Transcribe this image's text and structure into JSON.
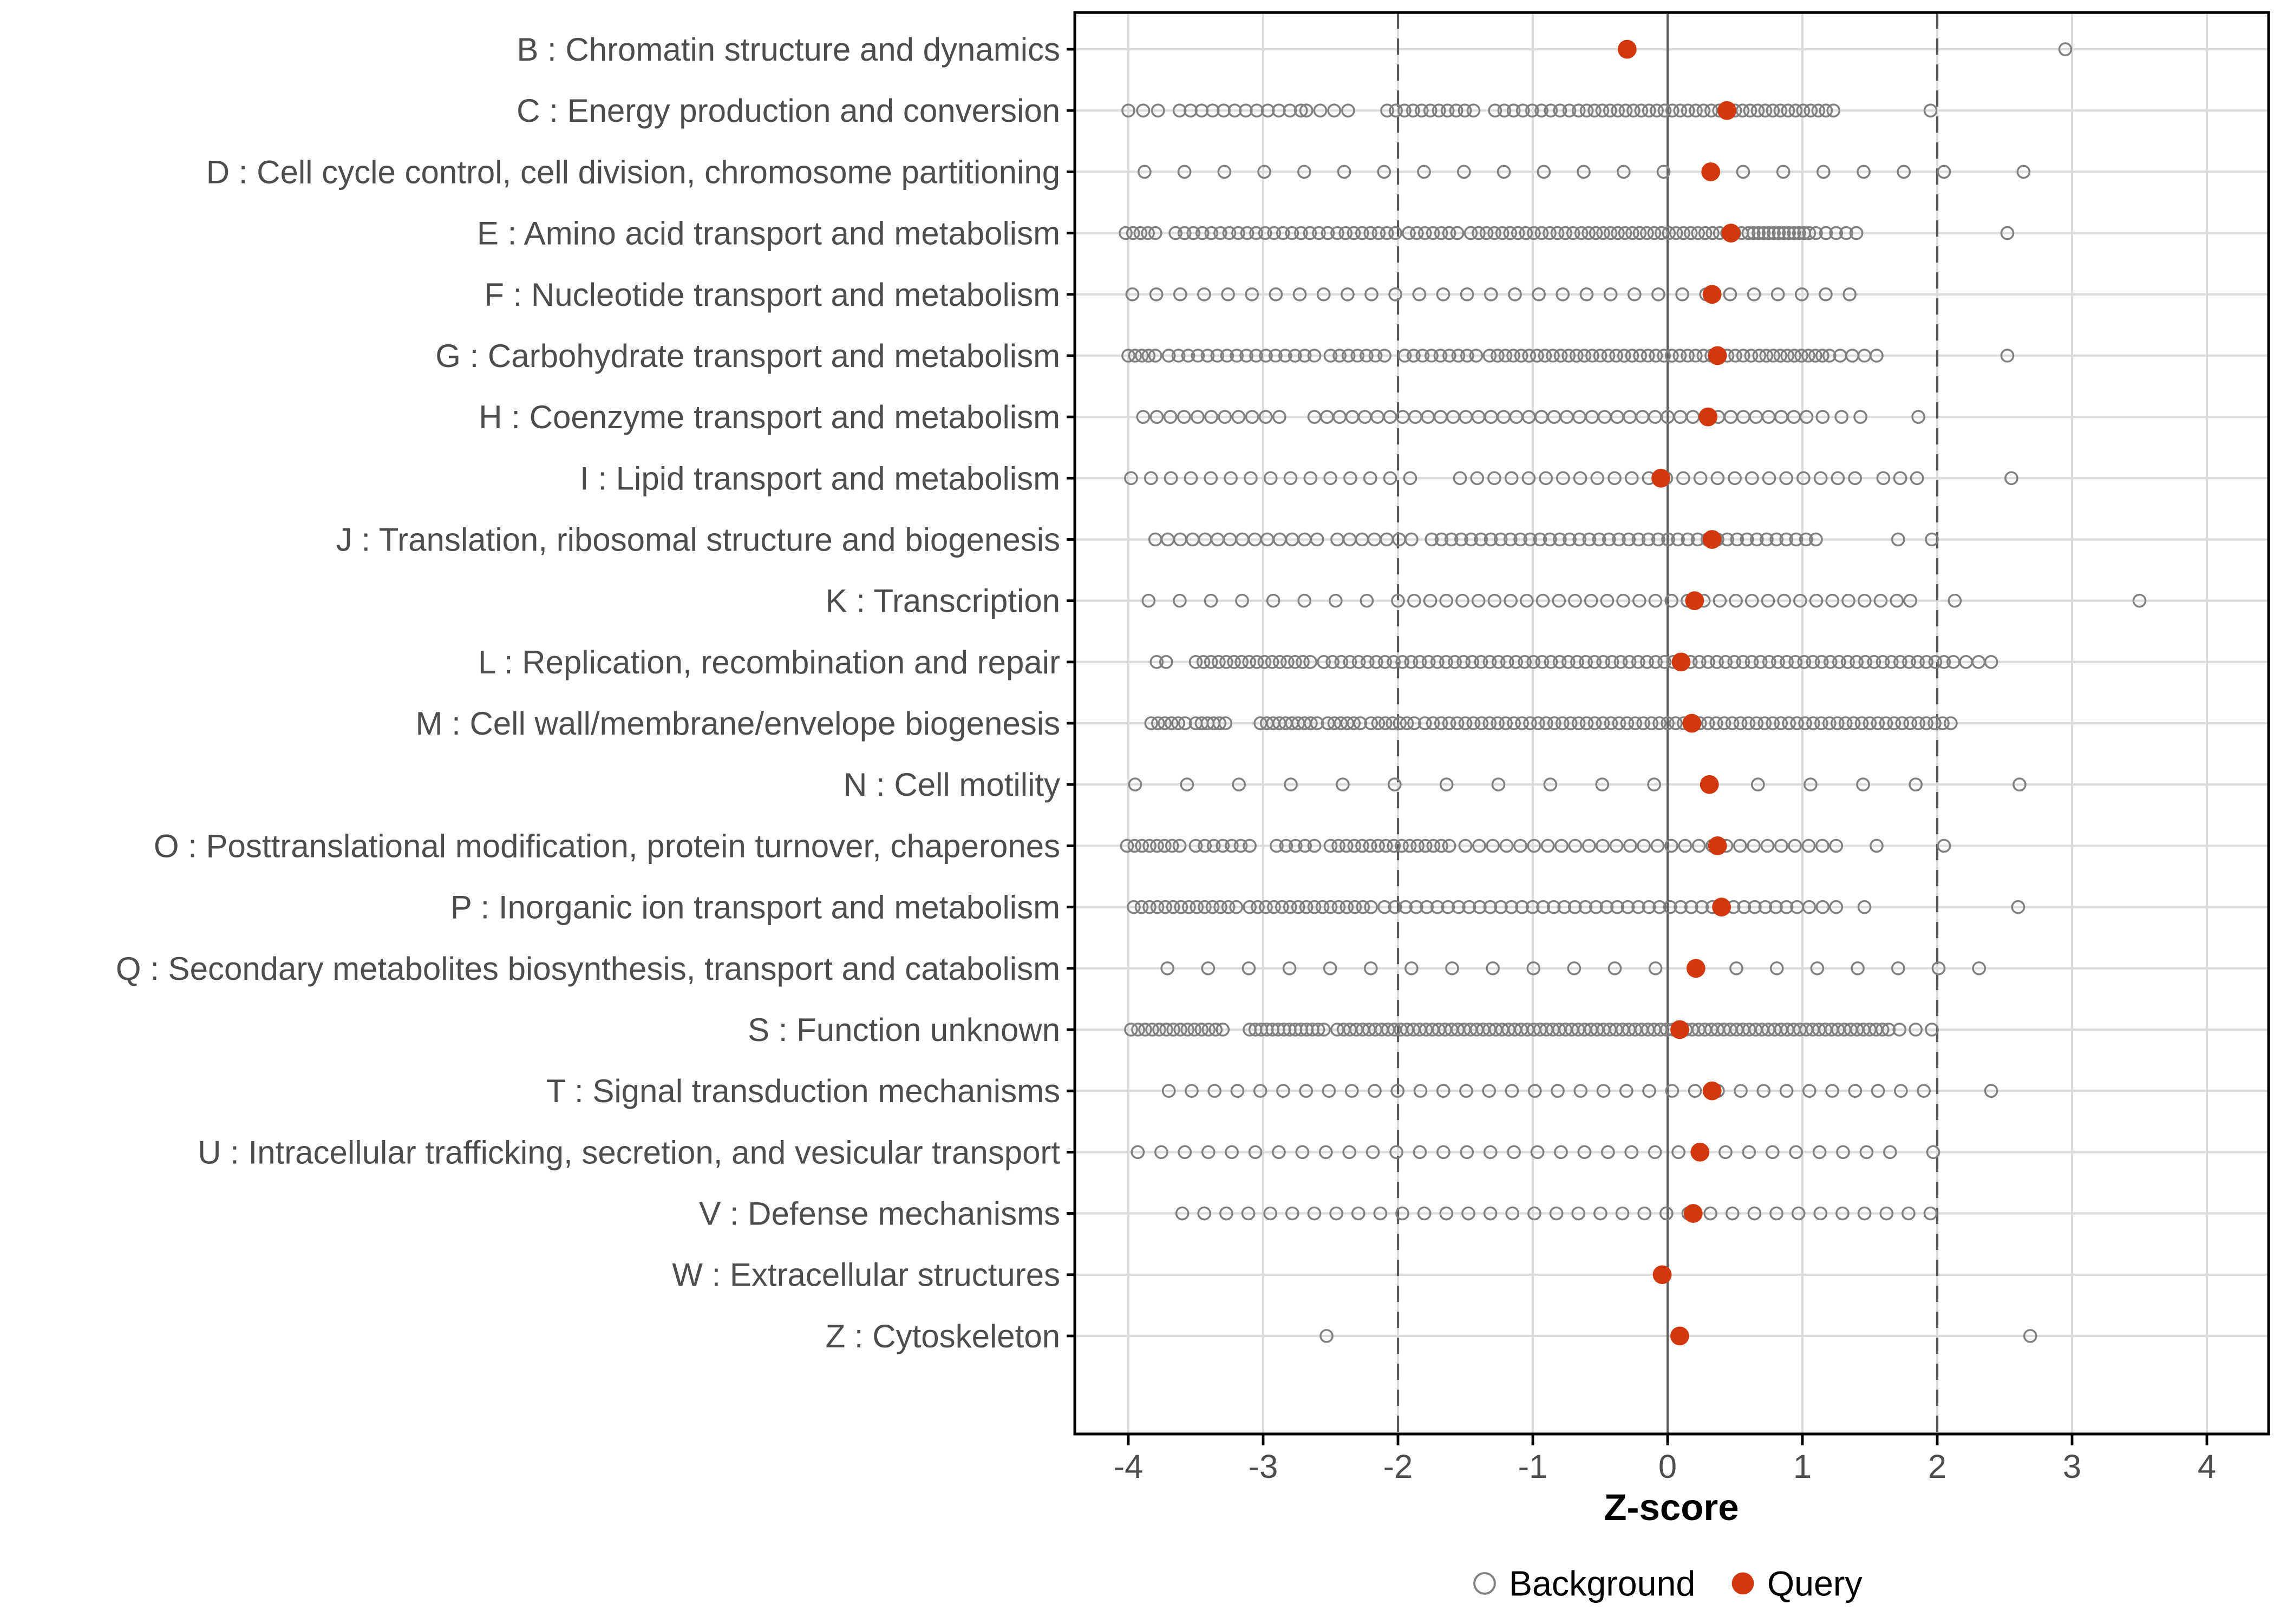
{
  "chart_data": {
    "type": "scatter",
    "subtype": "horizontal-strip-dotplot",
    "title": "",
    "xlabel": "Z-score",
    "ylabel": "",
    "x_ticks": [
      -4,
      -3,
      -2,
      -1,
      0,
      1,
      2,
      3,
      4
    ],
    "xlim": [
      -4.4,
      4.46
    ],
    "grid": "on",
    "reference_lines": {
      "zero_solid": 0,
      "dashed": [
        -2,
        2
      ]
    },
    "legend": {
      "position": "bottom",
      "background_label": "Background",
      "query_label": "Query"
    },
    "colors": {
      "query_fill": "#d2380e",
      "background_stroke": "#808080",
      "grid_line": "#dcdcdc",
      "reference_line": "#5a5a5a",
      "panel_border": "#000000",
      "axis_text": "#4d4d4d",
      "axis_title": "#000000"
    },
    "series": [
      {
        "name": "Background",
        "style": "open-circle"
      },
      {
        "name": "Query",
        "style": "filled-dot"
      }
    ],
    "categories": [
      {
        "code": "B",
        "label": "B : Chromatin structure and dynamics",
        "query": -0.3,
        "bg_segments": [],
        "bg_points": [
          2.95
        ]
      },
      {
        "code": "C",
        "label": "C : Energy production and conversion",
        "query": 0.44,
        "bg_segments": [
          [
            -4.0,
            -3.78,
            3
          ],
          [
            -3.62,
            -2.72,
            12
          ],
          [
            -2.68,
            -2.37,
            4
          ],
          [
            -2.08,
            -1.44,
            11
          ],
          [
            -1.28,
            -0.66,
            10
          ],
          [
            -0.6,
            0.44,
            19
          ],
          [
            0.5,
            1.23,
            14
          ]
        ],
        "bg_points": [
          1.95
        ]
      },
      {
        "code": "D",
        "label": "D : Cell cycle control, cell division, chromosome partitioning",
        "query": 0.32,
        "bg_segments": [
          [
            -3.88,
            -0.03,
            14
          ],
          [
            0.56,
            2.05,
            6
          ]
        ],
        "bg_points": [
          2.64
        ]
      },
      {
        "code": "E",
        "label": "E : Amino acid transport and metabolism",
        "query": 0.47,
        "bg_segments": [
          [
            -4.02,
            -3.8,
            5
          ],
          [
            -3.65,
            -2.52,
            18
          ],
          [
            -2.45,
            -2.02,
            8
          ],
          [
            -1.92,
            -1.56,
            7
          ],
          [
            -1.46,
            -0.7,
            14
          ],
          [
            -0.64,
            0.55,
            23
          ],
          [
            0.6,
            1.05,
            13
          ],
          [
            1.1,
            1.4,
            5
          ]
        ],
        "bg_points": [
          2.52
        ]
      },
      {
        "code": "F",
        "label": "F : Nucleotide transport and metabolism",
        "query": 0.33,
        "bg_segments": [
          [
            -3.97,
            1.35,
            31
          ]
        ],
        "bg_points": []
      },
      {
        "code": "G",
        "label": "G : Carbohydrate transport and metabolism",
        "query": 0.37,
        "bg_segments": [
          [
            -4.0,
            -3.8,
            5
          ],
          [
            -3.7,
            -2.62,
            16
          ],
          [
            -2.5,
            -2.1,
            7
          ],
          [
            -1.95,
            -1.42,
            9
          ],
          [
            -1.32,
            -0.5,
            15
          ],
          [
            -0.44,
            0.62,
            19
          ],
          [
            0.68,
            1.2,
            11
          ],
          [
            1.28,
            1.55,
            4
          ]
        ],
        "bg_points": [
          2.52
        ]
      },
      {
        "code": "H",
        "label": "H : Coenzyme transport and metabolism",
        "query": 0.3,
        "bg_segments": [
          [
            -3.89,
            -2.88,
            11
          ],
          [
            -2.62,
            1.03,
            40
          ],
          [
            1.15,
            1.43,
            3
          ]
        ],
        "bg_points": [
          1.86
        ]
      },
      {
        "code": "I",
        "label": "I : Lipid transport and metabolism",
        "query": -0.05,
        "bg_segments": [
          [
            -3.98,
            -1.91,
            15
          ],
          [
            -1.54,
            1.39,
            24
          ],
          [
            1.6,
            1.85,
            3
          ]
        ],
        "bg_points": [
          2.55
        ]
      },
      {
        "code": "J",
        "label": "J : Translation, ribosomal structure and biogenesis",
        "query": 0.33,
        "bg_segments": [
          [
            -3.8,
            -2.6,
            14
          ],
          [
            -2.45,
            -1.9,
            7
          ],
          [
            -1.75,
            1.1,
            40
          ],
          [
            1.71,
            1.96,
            2
          ]
        ],
        "bg_points": []
      },
      {
        "code": "K",
        "label": "K : Transcription",
        "query": 0.2,
        "bg_segments": [
          [
            -3.85,
            -2.0,
            9
          ],
          [
            -1.88,
            1.58,
            30
          ],
          [
            1.7,
            1.8,
            2
          ]
        ],
        "bg_points": [
          2.13,
          3.5
        ]
      },
      {
        "code": "L",
        "label": "L : Replication, recombination and repair",
        "query": 0.1,
        "bg_segments": [
          [
            -3.79,
            -3.72,
            2
          ],
          [
            -3.5,
            -2.65,
            16
          ],
          [
            -2.55,
            2.05,
            72
          ],
          [
            2.12,
            2.4,
            4
          ]
        ],
        "bg_points": []
      },
      {
        "code": "M",
        "label": "M : Cell wall/membrane/envelope biogenesis",
        "query": 0.18,
        "bg_segments": [
          [
            -3.83,
            -3.58,
            6
          ],
          [
            -3.5,
            -3.28,
            6
          ],
          [
            -3.02,
            -2.6,
            10
          ],
          [
            -2.52,
            -2.28,
            6
          ],
          [
            -2.2,
            -1.88,
            7
          ],
          [
            -1.8,
            2.1,
            66
          ]
        ],
        "bg_points": []
      },
      {
        "code": "N",
        "label": "N : Cell motility",
        "query": 0.31,
        "bg_segments": [
          [
            -3.95,
            -0.1,
            11
          ],
          [
            0.67,
            1.84,
            4
          ]
        ],
        "bg_points": [
          2.61
        ]
      },
      {
        "code": "O",
        "label": "O : Posttranslational modification, protein turnover, chaperones",
        "query": 0.37,
        "bg_segments": [
          [
            -4.01,
            -3.62,
            8
          ],
          [
            -3.5,
            -3.1,
            7
          ],
          [
            -2.9,
            -2.62,
            5
          ],
          [
            -2.5,
            -1.62,
            16
          ],
          [
            -1.5,
            1.25,
            28
          ]
        ],
        "bg_points": [
          1.55,
          2.05
        ]
      },
      {
        "code": "P",
        "label": "P : Inorganic ion transport and metabolism",
        "query": 0.4,
        "bg_segments": [
          [
            -3.96,
            -3.2,
            14
          ],
          [
            -3.1,
            -2.2,
            16
          ],
          [
            -2.1,
            0.96,
            40
          ],
          [
            1.05,
            1.25,
            3
          ]
        ],
        "bg_points": [
          1.46,
          2.6
        ]
      },
      {
        "code": "Q",
        "label": "Q : Secondary metabolites biosynthesis, transport and catabolism",
        "query": 0.21,
        "bg_segments": [
          [
            -3.71,
            -0.09,
            13
          ],
          [
            0.51,
            2.31,
            7
          ]
        ],
        "bg_points": []
      },
      {
        "code": "S",
        "label": "S : Function unknown",
        "query": 0.09,
        "bg_segments": [
          [
            -3.98,
            -3.3,
            14
          ],
          [
            -3.1,
            -2.55,
            14
          ],
          [
            -2.45,
            1.64,
            88
          ],
          [
            1.72,
            1.96,
            3
          ]
        ],
        "bg_points": []
      },
      {
        "code": "T",
        "label": "T : Signal transduction mechanisms",
        "query": 0.33,
        "bg_segments": [
          [
            -3.7,
            1.9,
            34
          ]
        ],
        "bg_points": [
          2.4
        ]
      },
      {
        "code": "U",
        "label": "U : Intracellular trafficking, secretion, and vesicular transport",
        "query": 0.24,
        "bg_segments": [
          [
            -3.93,
            1.65,
            33
          ]
        ],
        "bg_points": [
          1.97
        ]
      },
      {
        "code": "V",
        "label": "V : Defense mechanisms",
        "query": 0.19,
        "bg_segments": [
          [
            -3.6,
            1.95,
            35
          ]
        ],
        "bg_points": []
      },
      {
        "code": "W",
        "label": "W : Extracellular structures",
        "query": -0.04,
        "bg_segments": [],
        "bg_points": []
      },
      {
        "code": "Z",
        "label": "Z : Cytoskeleton",
        "query": 0.09,
        "bg_segments": [],
        "bg_points": [
          -2.53,
          2.69
        ]
      }
    ]
  }
}
